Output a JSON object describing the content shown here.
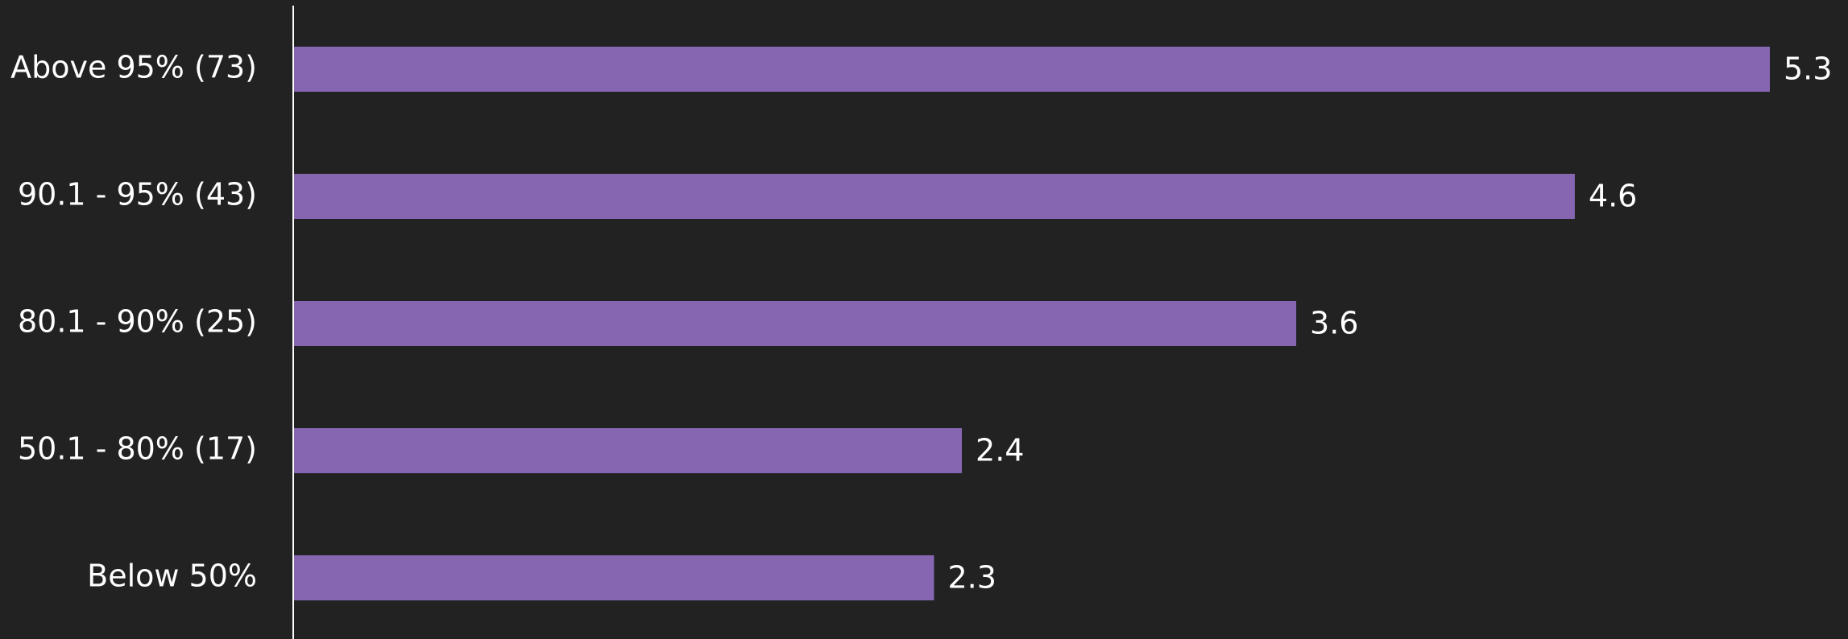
{
  "chart_data": {
    "type": "bar",
    "orientation": "horizontal",
    "categories": [
      "Above 95% (73)",
      "90.1 - 95% (43)",
      "80.1 - 90% (25)",
      "50.1 - 80% (17)",
      "Below 50%"
    ],
    "values": [
      5.3,
      4.6,
      3.6,
      2.4,
      2.3
    ],
    "color": "#8665b1"
  }
}
